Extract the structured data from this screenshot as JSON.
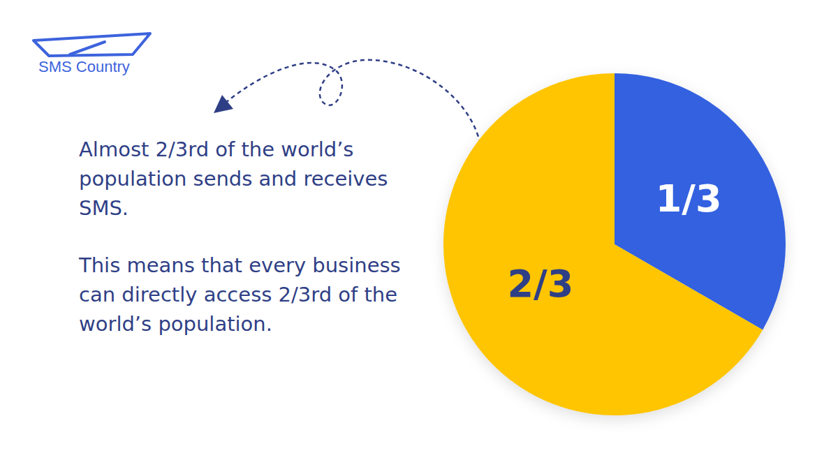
{
  "logo": "SMS Country",
  "chart_data": {
    "type": "pie",
    "values": [
      0.3333,
      0.6667
    ],
    "value_labels": [
      "1/3",
      "2/3"
    ],
    "data_labels": true,
    "colors": [
      "#3361e0",
      "#ffc501"
    ],
    "annotations": [
      "Almost 2/3rd of the world’s population sends and receives SMS.",
      "This means that every business can directly access 2/3rd of the world’s population."
    ]
  }
}
